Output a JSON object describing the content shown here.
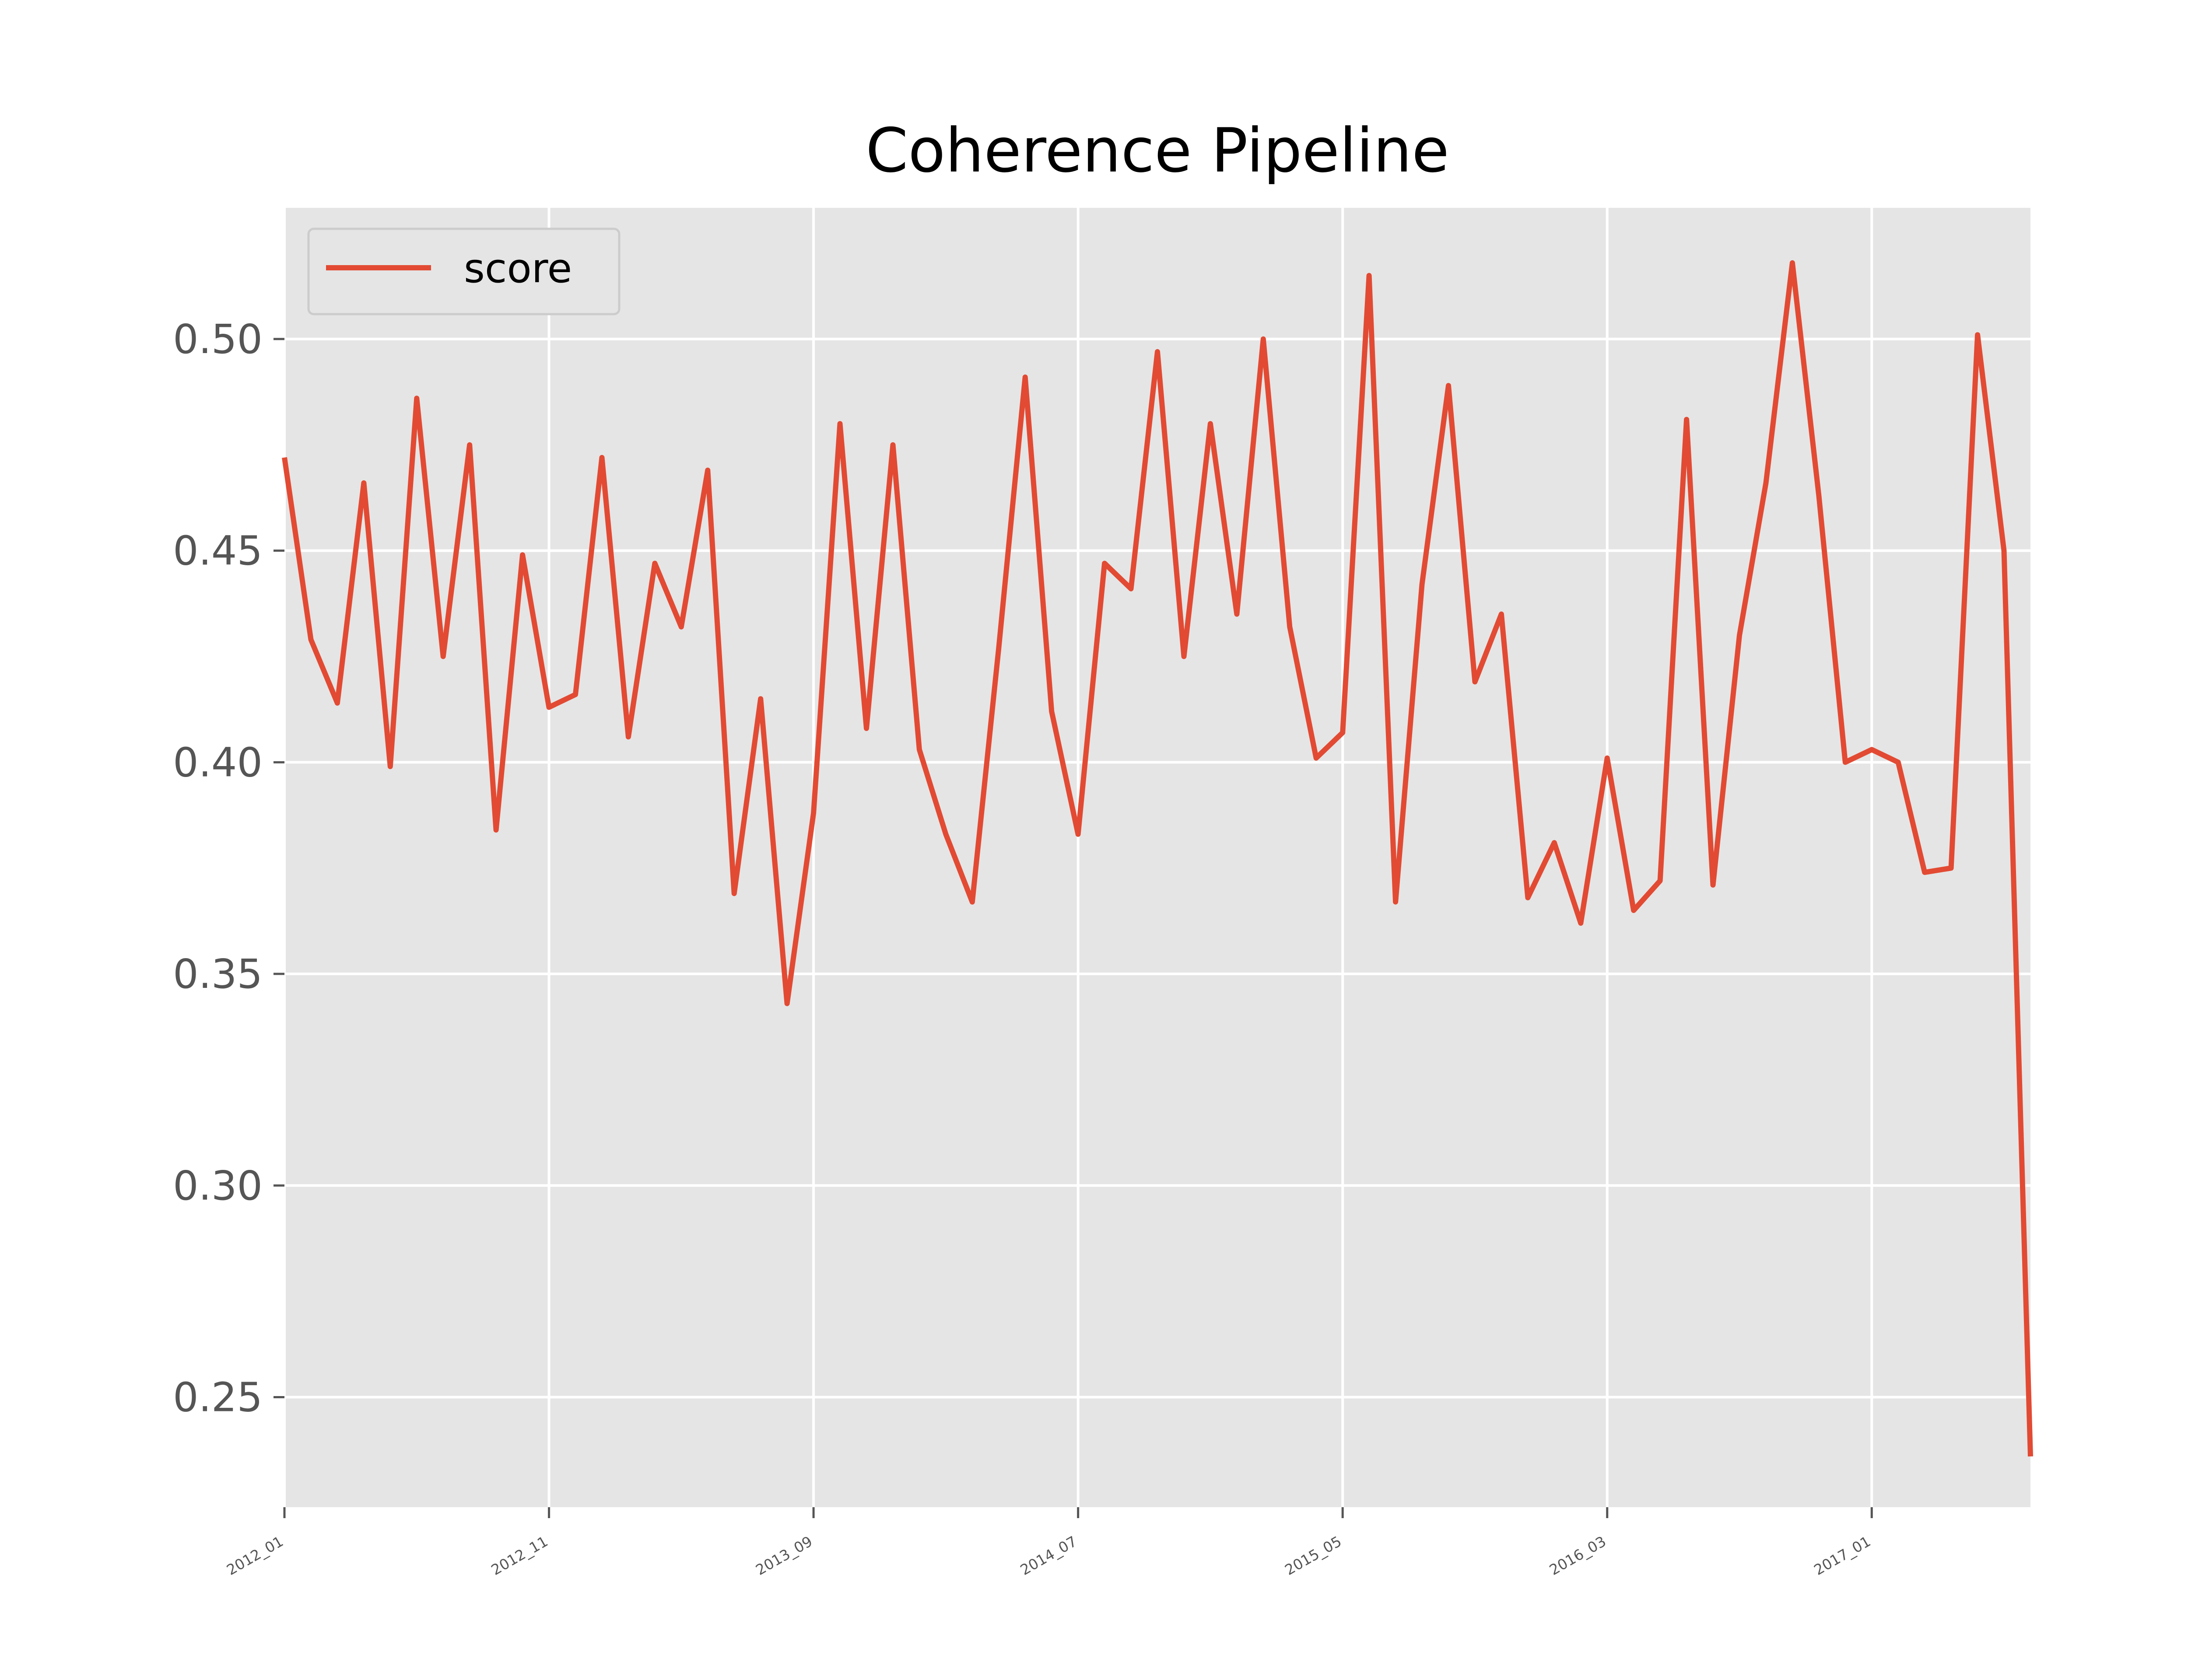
{
  "chart_data": {
    "type": "line",
    "title": "Coherence Pipeline",
    "xlabel": "",
    "ylabel": "",
    "x_tick_labels": [
      "2012_01",
      "2012_11",
      "2013_09",
      "2014_07",
      "2015_05",
      "2016_03",
      "2017_01"
    ],
    "y_tick_labels": [
      "0.25",
      "0.30",
      "0.35",
      "0.40",
      "0.45",
      "0.50"
    ],
    "ylim": [
      0.224,
      0.531
    ],
    "grid": true,
    "legend_position": "top-left",
    "x": [
      "2012_01",
      "2012_02",
      "2012_03",
      "2012_04",
      "2012_05",
      "2012_06",
      "2012_07",
      "2012_08",
      "2012_09",
      "2012_10",
      "2012_11",
      "2012_12",
      "2013_01",
      "2013_02",
      "2013_03",
      "2013_04",
      "2013_05",
      "2013_06",
      "2013_07",
      "2013_08",
      "2013_09",
      "2013_10",
      "2013_11",
      "2013_12",
      "2014_01",
      "2014_02",
      "2014_03",
      "2014_04",
      "2014_05",
      "2014_06",
      "2014_07",
      "2014_08",
      "2014_09",
      "2014_10",
      "2014_11",
      "2014_12",
      "2015_01",
      "2015_02",
      "2015_03",
      "2015_04",
      "2015_05",
      "2015_06",
      "2015_07",
      "2015_08",
      "2015_09",
      "2015_10",
      "2015_11",
      "2015_12",
      "2016_01",
      "2016_02",
      "2016_03",
      "2016_04",
      "2016_05",
      "2016_06",
      "2016_07",
      "2016_08",
      "2016_09",
      "2016_10",
      "2016_11",
      "2016_12",
      "2017_01",
      "2017_02",
      "2017_03",
      "2017_04",
      "2017_05",
      "2017_06",
      "2017_07"
    ],
    "series": [
      {
        "name": "score",
        "color": "#e24a33",
        "values": [
          0.472,
          0.429,
          0.414,
          0.466,
          0.399,
          0.486,
          0.425,
          0.475,
          0.384,
          0.449,
          0.413,
          0.416,
          0.472,
          0.406,
          0.447,
          0.432,
          0.469,
          0.369,
          0.415,
          0.343,
          0.388,
          0.48,
          0.408,
          0.475,
          0.403,
          0.383,
          0.367,
          0.427,
          0.491,
          0.412,
          0.383,
          0.447,
          0.441,
          0.497,
          0.425,
          0.48,
          0.435,
          0.5,
          0.432,
          0.401,
          0.407,
          0.515,
          0.367,
          0.442,
          0.489,
          0.419,
          0.435,
          0.368,
          0.381,
          0.362,
          0.401,
          0.365,
          0.372,
          0.481,
          0.371,
          0.43,
          0.466,
          0.518,
          0.463,
          0.4,
          0.403,
          0.4,
          0.374,
          0.375,
          0.501,
          0.45,
          0.236
        ]
      }
    ]
  },
  "colors": {
    "axes_background": "#e5e5e5",
    "grid": "#ffffff",
    "line": "#e24a33"
  }
}
